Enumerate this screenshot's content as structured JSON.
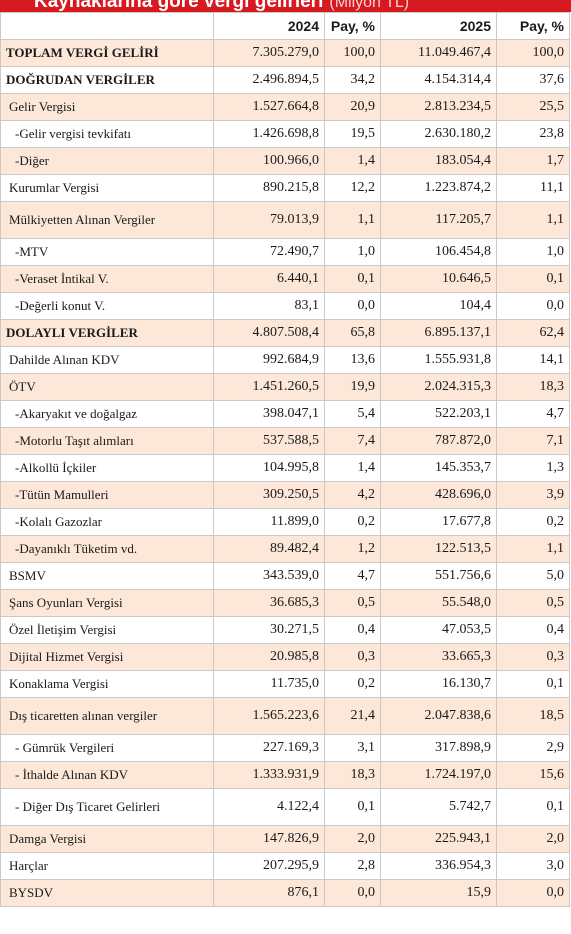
{
  "title": {
    "text": "Kaynaklarına göre vergi gelirleri",
    "unit": "(Milyon TL)"
  },
  "headers": {
    "label": "",
    "y2024": "2024",
    "pay2024": "Pay, %",
    "y2025": "2025",
    "pay2025": "Pay, %"
  },
  "colors": {
    "title_bar": "#d71920",
    "stripe": "#fde7d8",
    "border": "#c9c9c9"
  },
  "rows": [
    {
      "label": "TOPLAM VERGİ GELİRİ",
      "v2024": "7.305.279,0",
      "p2024": "100,0",
      "v2025": "11.049.467,4",
      "p2025": "100,0"
    },
    {
      "label": "DOĞRUDAN VERGİLER",
      "v2024": "2.496.894,5",
      "p2024": "34,2",
      "v2025": "4.154.314,4",
      "p2025": "37,6"
    },
    {
      "label": "Gelir Vergisi",
      "v2024": "1.527.664,8",
      "p2024": "20,9",
      "v2025": "2.813.234,5",
      "p2025": "25,5"
    },
    {
      "label": "-Gelir vergisi tevkifatı",
      "v2024": "1.426.698,8",
      "p2024": "19,5",
      "v2025": "2.630.180,2",
      "p2025": "23,8"
    },
    {
      "label": "-Diğer",
      "v2024": "100.966,0",
      "p2024": "1,4",
      "v2025": "183.054,4",
      "p2025": "1,7"
    },
    {
      "label": "Kurumlar Vergisi",
      "v2024": "890.215,8",
      "p2024": "12,2",
      "v2025": "1.223.874,2",
      "p2025": "11,1"
    },
    {
      "label": "Mülkiyetten Alınan Vergiler",
      "v2024": "79.013,9",
      "p2024": "1,1",
      "v2025": "117.205,7",
      "p2025": "1,1"
    },
    {
      "label": "-MTV",
      "v2024": "72.490,7",
      "p2024": "1,0",
      "v2025": "106.454,8",
      "p2025": "1,0"
    },
    {
      "label": "-Veraset İntikal V.",
      "v2024": "6.440,1",
      "p2024": "0,1",
      "v2025": "10.646,5",
      "p2025": "0,1"
    },
    {
      "label": "-Değerli konut V.",
      "v2024": "83,1",
      "p2024": "0,0",
      "v2025": "104,4",
      "p2025": "0,0"
    },
    {
      "label": "DOLAYLI VERGİLER",
      "v2024": "4.807.508,4",
      "p2024": "65,8",
      "v2025": "6.895.137,1",
      "p2025": "62,4"
    },
    {
      "label": "Dahilde Alınan KDV",
      "v2024": "992.684,9",
      "p2024": "13,6",
      "v2025": "1.555.931,8",
      "p2025": "14,1"
    },
    {
      "label": "ÖTV",
      "v2024": "1.451.260,5",
      "p2024": "19,9",
      "v2025": "2.024.315,3",
      "p2025": "18,3"
    },
    {
      "label": "-Akaryakıt ve doğalgaz",
      "v2024": "398.047,1",
      "p2024": "5,4",
      "v2025": "522.203,1",
      "p2025": "4,7"
    },
    {
      "label": "-Motorlu Taşıt alımları",
      "v2024": "537.588,5",
      "p2024": "7,4",
      "v2025": "787.872,0",
      "p2025": "7,1"
    },
    {
      "label": "-Alkollü İçkiler",
      "v2024": "104.995,8",
      "p2024": "1,4",
      "v2025": "145.353,7",
      "p2025": "1,3"
    },
    {
      "label": "-Tütün Mamulleri",
      "v2024": "309.250,5",
      "p2024": "4,2",
      "v2025": "428.696,0",
      "p2025": "3,9"
    },
    {
      "label": "-Kolalı Gazozlar",
      "v2024": "11.899,0",
      "p2024": "0,2",
      "v2025": "17.677,8",
      "p2025": "0,2"
    },
    {
      "label": "-Dayanıklı Tüketim vd.",
      "v2024": "89.482,4",
      "p2024": "1,2",
      "v2025": "122.513,5",
      "p2025": "1,1"
    },
    {
      "label": "BSMV",
      "v2024": "343.539,0",
      "p2024": "4,7",
      "v2025": "551.756,6",
      "p2025": "5,0"
    },
    {
      "label": "Şans Oyunları Vergisi",
      "v2024": "36.685,3",
      "p2024": "0,5",
      "v2025": "55.548,0",
      "p2025": "0,5"
    },
    {
      "label": "Özel İletişim Vergisi",
      "v2024": "30.271,5",
      "p2024": "0,4",
      "v2025": "47.053,5",
      "p2025": "0,4"
    },
    {
      "label": "Dijital Hizmet Vergisi",
      "v2024": "20.985,8",
      "p2024": "0,3",
      "v2025": "33.665,3",
      "p2025": "0,3"
    },
    {
      "label": "Konaklama Vergisi",
      "v2024": "11.735,0",
      "p2024": "0,2",
      "v2025": "16.130,7",
      "p2025": "0,1"
    },
    {
      "label": "Dış ticaretten alınan vergiler",
      "v2024": "1.565.223,6",
      "p2024": "21,4",
      "v2025": "2.047.838,6",
      "p2025": "18,5"
    },
    {
      "label": "- Gümrük Vergileri",
      "v2024": "227.169,3",
      "p2024": "3,1",
      "v2025": "317.898,9",
      "p2025": "2,9"
    },
    {
      "label": "- İthalde Alınan KDV",
      "v2024": "1.333.931,9",
      "p2024": "18,3",
      "v2025": "1.724.197,0",
      "p2025": "15,6"
    },
    {
      "label": "- Diğer Dış Ticaret Gelirleri",
      "v2024": "4.122,4",
      "p2024": "0,1",
      "v2025": "5.742,7",
      "p2025": "0,1"
    },
    {
      "label": "Damga Vergisi",
      "v2024": "147.826,9",
      "p2024": "2,0",
      "v2025": "225.943,1",
      "p2025": "2,0"
    },
    {
      "label": "Harçlar",
      "v2024": "207.295,9",
      "p2024": "2,8",
      "v2025": "336.954,3",
      "p2025": "3,0"
    },
    {
      "label": "BYSDV",
      "v2024": "876,1",
      "p2024": "0,0",
      "v2025": "15,9",
      "p2025": "0,0"
    }
  ]
}
